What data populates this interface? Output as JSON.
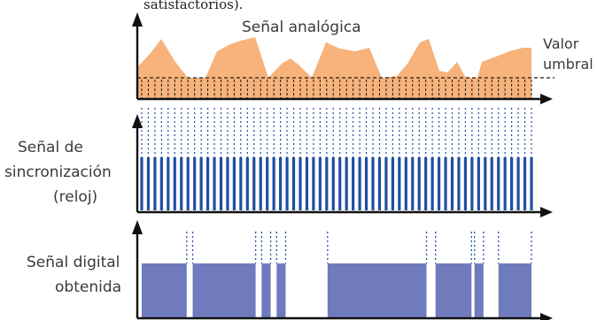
{
  "top_cut_text": "satisfactorios).",
  "labels": {
    "analog_signal": "Señal analógica",
    "threshold": [
      "Valor",
      "umbral"
    ],
    "clock": [
      "Señal de",
      "sincronización",
      "(reloj)"
    ],
    "digital": [
      "Señal digital",
      "obtenida"
    ]
  },
  "colors": {
    "analog_fill": "#f7b37b",
    "clock_bar": "#1f4fa2",
    "digital_fill": "#6f7bbd",
    "axis": "#111111",
    "guide": "#1f4fa2"
  },
  "clock": {
    "pulses": 60
  },
  "digital": {
    "levels": [
      1,
      1,
      1,
      1,
      1,
      1,
      1,
      1,
      1,
      1,
      1,
      1,
      1,
      1,
      1,
      0,
      0,
      1,
      1,
      1,
      1,
      1,
      1,
      1,
      1,
      1,
      1,
      1,
      1,
      1,
      1,
      1,
      1,
      1,
      1,
      1,
      1,
      1,
      0,
      0,
      1,
      1,
      1,
      0,
      0,
      1,
      1,
      1,
      0,
      0,
      0,
      0,
      0,
      0,
      0,
      0,
      0,
      0,
      0,
      0,
      0,
      0,
      1,
      1,
      1,
      1,
      1,
      1,
      1,
      1,
      1,
      1,
      1,
      1,
      1,
      1,
      1,
      1,
      1,
      1,
      1,
      1,
      1,
      1,
      1,
      1,
      1,
      1,
      1,
      1,
      1,
      1,
      1,
      1,
      1,
      0,
      0,
      0,
      1,
      1,
      1,
      1,
      1,
      1,
      1,
      1,
      1,
      1,
      1,
      1,
      0,
      1,
      1,
      1,
      0,
      0,
      0,
      0,
      0,
      1,
      1,
      1,
      1,
      1,
      1,
      1,
      1,
      1,
      1,
      1
    ]
  }
}
